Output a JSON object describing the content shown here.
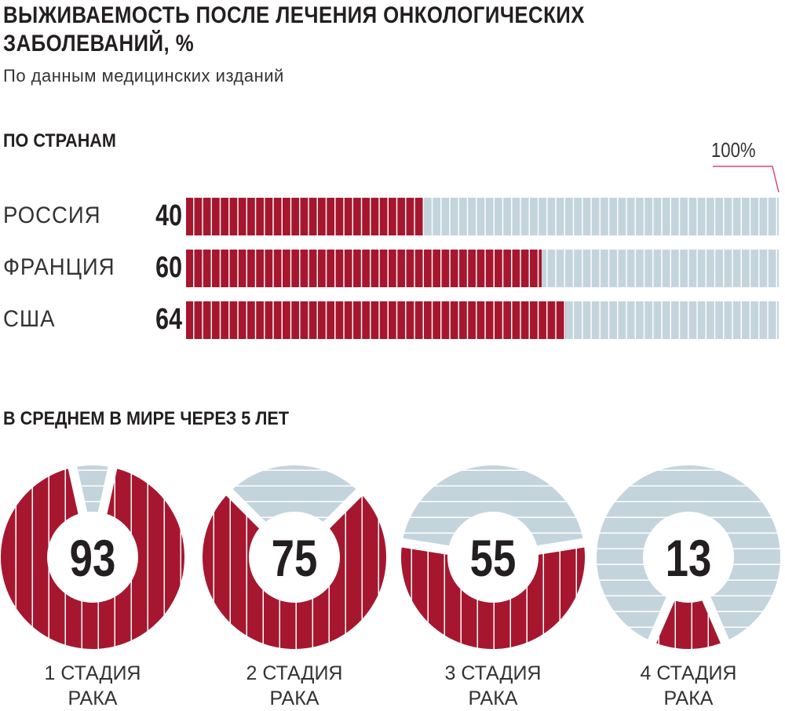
{
  "header": {
    "title_line1": "ВЫЖИВАЕМОСТЬ ПОСЛЕ ЛЕЧЕНИЯ ОНКОЛОГИЧЕСКИХ",
    "title_line2": "ЗАБОЛЕВАНИЙ, %",
    "subtitle": "По данным медицинских изданий"
  },
  "colors": {
    "accent": "#a6172f",
    "remainder": "#c4d4dd",
    "marker": "#e0457b"
  },
  "chart_data": [
    {
      "type": "bar",
      "title": "ПО СТРАНАМ",
      "max_label": "100%",
      "xlim": [
        0,
        100
      ],
      "categories": [
        "РОССИЯ",
        "ФРАНЦИЯ",
        "США"
      ],
      "values": [
        40,
        60,
        64
      ],
      "value_labels": [
        "40",
        "60",
        "64"
      ]
    },
    {
      "type": "pie",
      "title": "В СРЕДНЕМ В МИРЕ ЧЕРЕЗ 5 ЛЕТ",
      "categories": [
        {
          "line1": "1 СТАДИЯ",
          "line2": "РАКА"
        },
        {
          "line1": "2 СТАДИЯ",
          "line2": "РАКА"
        },
        {
          "line1": "3 СТАДИЯ",
          "line2": "РАКА"
        },
        {
          "line1": "4 СТАДИЯ",
          "line2": "РАКА"
        }
      ],
      "values": [
        93,
        75,
        55,
        13
      ],
      "value_labels": [
        "93",
        "75",
        "55",
        "13"
      ]
    }
  ]
}
